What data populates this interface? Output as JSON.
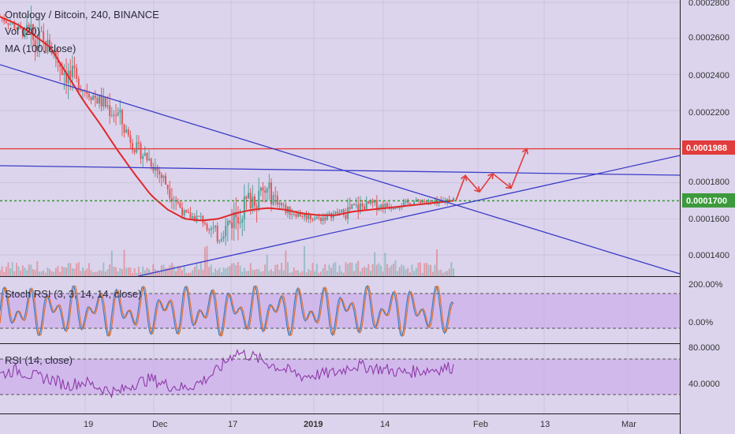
{
  "header": {
    "title": "Ontology / Bitcoin, 240, BINANCE",
    "vol_label": "Vol (20)",
    "ma_label": "MA (100, close)"
  },
  "price_axis": {
    "ticks": [
      "0.0002800",
      "0.0002600",
      "0.0002400",
      "0.0002200",
      "0.0001800",
      "0.0001600",
      "0.0001400"
    ]
  },
  "badges": {
    "red_level": "0.0001988",
    "green_level": "0.0001700"
  },
  "stoch_rsi": {
    "label": "Stoch RSI (3, 3, 14, 14, close)",
    "ticks": [
      "200.00%",
      "0.00%"
    ]
  },
  "rsi": {
    "label": "RSI (14, close)",
    "ticks": [
      "80.0000",
      "40.0000"
    ]
  },
  "time_axis": {
    "ticks": [
      "19",
      "Dec",
      "17",
      "2019",
      "14",
      "Feb",
      "13",
      "Mar"
    ]
  },
  "colors": {
    "background": "#dcd4ec",
    "trendline": "#3c3cc8",
    "resistance": "#e23c3c",
    "support_dotted": "#3c9a3c",
    "ma": "#e02828",
    "candle_up": "#4aa39b",
    "candle_down": "#e2585a",
    "rsi_line": "#8e3aa8",
    "stoch_k": "#3a7ec8",
    "stoch_d": "#e0702a",
    "band_fill": "#c9a6ec"
  },
  "chart_data": {
    "type": "candlestick",
    "title": "Ontology / Bitcoin, 240, BINANCE",
    "x_ticks": [
      "19",
      "Dec",
      "17",
      "2019",
      "14",
      "Feb",
      "13",
      "Mar"
    ],
    "y_ticks": [
      0.00028,
      0.00026,
      0.00024,
      0.00022,
      0.00018,
      0.00016,
      0.00014
    ],
    "ylim": [
      0.000128,
      0.0002832
    ],
    "horizontal_levels": [
      {
        "name": "resistance",
        "value": 0.0001988,
        "style": "solid",
        "color": "#e23c3c"
      },
      {
        "name": "support",
        "value": 0.00017,
        "style": "dotted",
        "color": "#3c9a3c"
      }
    ],
    "trendlines": [
      {
        "from": [
          "Nov 1",
          0.000245
        ],
        "to": [
          "Mar 12",
          0.000128
        ]
      },
      {
        "from": [
          "Nov 1",
          0.000191
        ],
        "to": [
          "Mar 12",
          0.000182
        ]
      },
      {
        "from": [
          "Nov 25",
          0.000128
        ],
        "to": [
          "Mar 12",
          0.000195
        ]
      }
    ],
    "price_path": [
      [
        0.000272,
        0.000278,
        0.000265
      ],
      [
        0.000266,
        0.00027,
        0.000255
      ],
      [
        0.000258,
        0.000268,
        0.000215
      ],
      [
        0.000255,
        0.000262,
        0.00023
      ],
      [
        0.00024,
        0.000248,
        0.000205
      ],
      [
        0.000232,
        0.000242,
        0.00022
      ],
      [
        0.000225,
        0.000236,
        0.00021
      ],
      [
        0.000218,
        0.00023,
        0.000195
      ],
      [
        0.0002,
        0.00021,
        0.000188
      ],
      [
        0.000192,
        0.000205,
        0.00018
      ],
      [
        0.000178,
        0.00019,
        0.000162
      ],
      [
        0.000162,
        0.00017,
        0.000155
      ],
      [
        0.00016,
        0.000166,
        0.00015
      ],
      [
        0.00015,
        0.00016,
        0.000135
      ],
      [
        0.000162,
        0.000195,
        0.00015
      ],
      [
        0.000172,
        0.0002,
        0.00016
      ],
      [
        0.000175,
        0.000198,
        0.000165
      ],
      [
        0.000165,
        0.000175,
        0.00016
      ],
      [
        0.000162,
        0.00017,
        0.000158
      ],
      [
        0.00016,
        0.000167,
        0.000155
      ],
      [
        0.000163,
        0.000168,
        0.000158
      ],
      [
        0.000165,
        0.000186,
        0.00016
      ],
      [
        0.000168,
        0.000178,
        0.000162
      ],
      [
        0.000167,
        0.000176,
        0.000163
      ],
      [
        0.000168,
        0.000175,
        0.000165
      ],
      [
        0.00017,
        0.000174,
        0.000166
      ],
      [
        0.000168,
        0.000175,
        0.000163
      ],
      [
        0.000172,
        0.000177,
        0.000166
      ]
    ],
    "ma_path": [
      0.000272,
      0.000268,
      0.000262,
      0.000255,
      0.00024,
      0.000225,
      0.000212,
      0.000198,
      0.000185,
      0.000173,
      0.000165,
      0.00016,
      0.000159,
      0.00016,
      0.000163,
      0.000165,
      0.000166,
      0.000165,
      0.000163,
      0.000162,
      0.000162,
      0.000164,
      0.000165,
      0.000166,
      0.000167,
      0.000168,
      0.000169,
      0.00017
    ],
    "projection": [
      [
        0.00017,
        0.000184
      ],
      [
        0.000184,
        0.000175
      ],
      [
        0.000175,
        0.000185
      ],
      [
        0.000185,
        0.000177
      ],
      [
        0.000177,
        0.0001988
      ]
    ],
    "stoch_rsi": {
      "ticks": [
        "200.00%",
        "0.00%"
      ],
      "upper": 80,
      "lower": 20
    },
    "rsi": {
      "ticks": [
        80,
        40
      ],
      "upper": 70,
      "lower": 30,
      "values": [
        50,
        55,
        48,
        45,
        38,
        42,
        35,
        30,
        40,
        45,
        38,
        35,
        42,
        55,
        75,
        70,
        62,
        55,
        48,
        50,
        52,
        60,
        58,
        55,
        52,
        54,
        56,
        58
      ]
    }
  }
}
